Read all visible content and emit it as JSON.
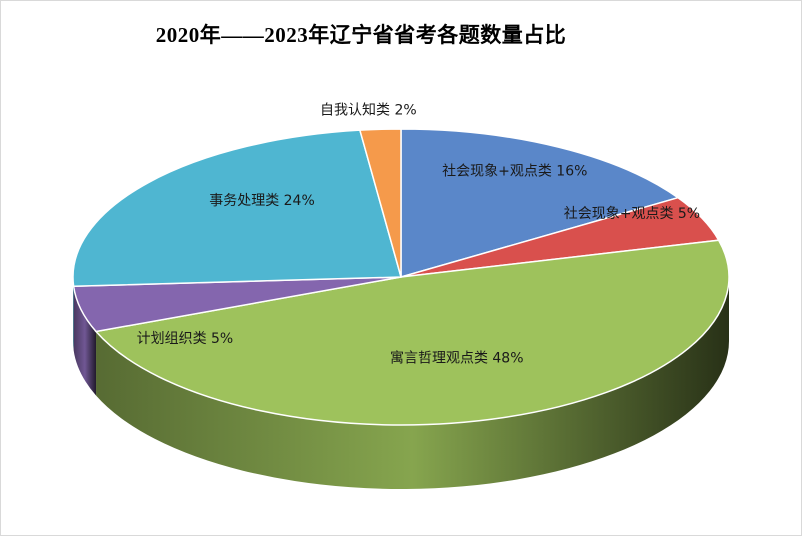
{
  "chart_data": {
    "type": "pie",
    "title": "2020年——2023年辽宁省省考各题数量占比",
    "slices": [
      {
        "name": "社会现象+观点类",
        "percent": 16,
        "label": "社会现象+观点类 16%",
        "color": "#5a87c9"
      },
      {
        "name": "社会现象+观点类",
        "percent": 5,
        "label": "社会现象+观点类 5%",
        "color": "#d9504d"
      },
      {
        "name": "寓言哲理观点类",
        "percent": 48,
        "label": "寓言哲理观点类 48%",
        "color": "#9ec25c"
      },
      {
        "name": "计划组织类",
        "percent": 5,
        "label": "计划组织类 5%",
        "color": "#8466ae"
      },
      {
        "name": "事务处理类",
        "percent": 24,
        "label": "事务处理类 24%",
        "color": "#4fb6d1"
      },
      {
        "name": "自我认知类",
        "percent": 2,
        "label": "自我认知类 2%",
        "color": "#f59a4b"
      }
    ],
    "legend": "none",
    "style": "3d-pie"
  }
}
